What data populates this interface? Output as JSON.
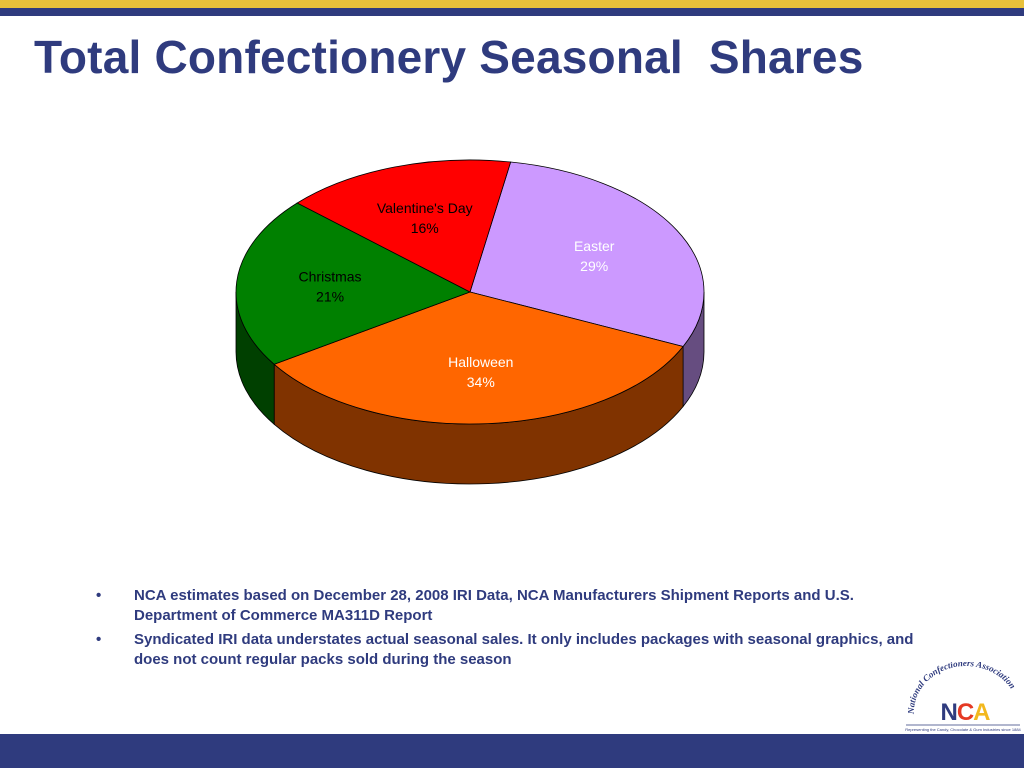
{
  "slide": {
    "title": "Total Confectionery Seasonal  Shares",
    "bullets": [
      "NCA estimates based on December 28, 2008 IRI Data, NCA Manufacturers Shipment Reports and U.S. Department of Commerce MA311D Report",
      "Syndicated IRI data understates actual seasonal sales.  It only includes packages with seasonal graphics, and does not count regular packs sold during the season"
    ]
  },
  "logo": {
    "arc_text": "National Confectioners Association",
    "letters": "NCA",
    "tagline": "Representing the Candy, Chocolate & Gum Industries since 1884"
  },
  "colors": {
    "title": "#2f3b7e",
    "navy_bar": "#2f3b7e",
    "gold_bar": "#e8c13a"
  },
  "chart_data": {
    "type": "pie",
    "style": "3d",
    "title": "",
    "slices": [
      {
        "label": "Easter",
        "value": 29,
        "display": "29%",
        "color": "#cc99ff",
        "side": "#664d80",
        "text_color": "#ffffff"
      },
      {
        "label": "Halloween",
        "value": 34,
        "display": "34%",
        "color": "#ff6600",
        "side": "#803300",
        "text_color": "#ffffff"
      },
      {
        "label": "Christmas",
        "value": 21,
        "display": "21%",
        "color": "#008000",
        "side": "#004000",
        "text_color": "#000000"
      },
      {
        "label": "Valentine's Day",
        "value": 16,
        "display": "16%",
        "color": "#ff0000",
        "side": "#800000",
        "text_color": "#000000"
      }
    ],
    "legend": "none"
  }
}
